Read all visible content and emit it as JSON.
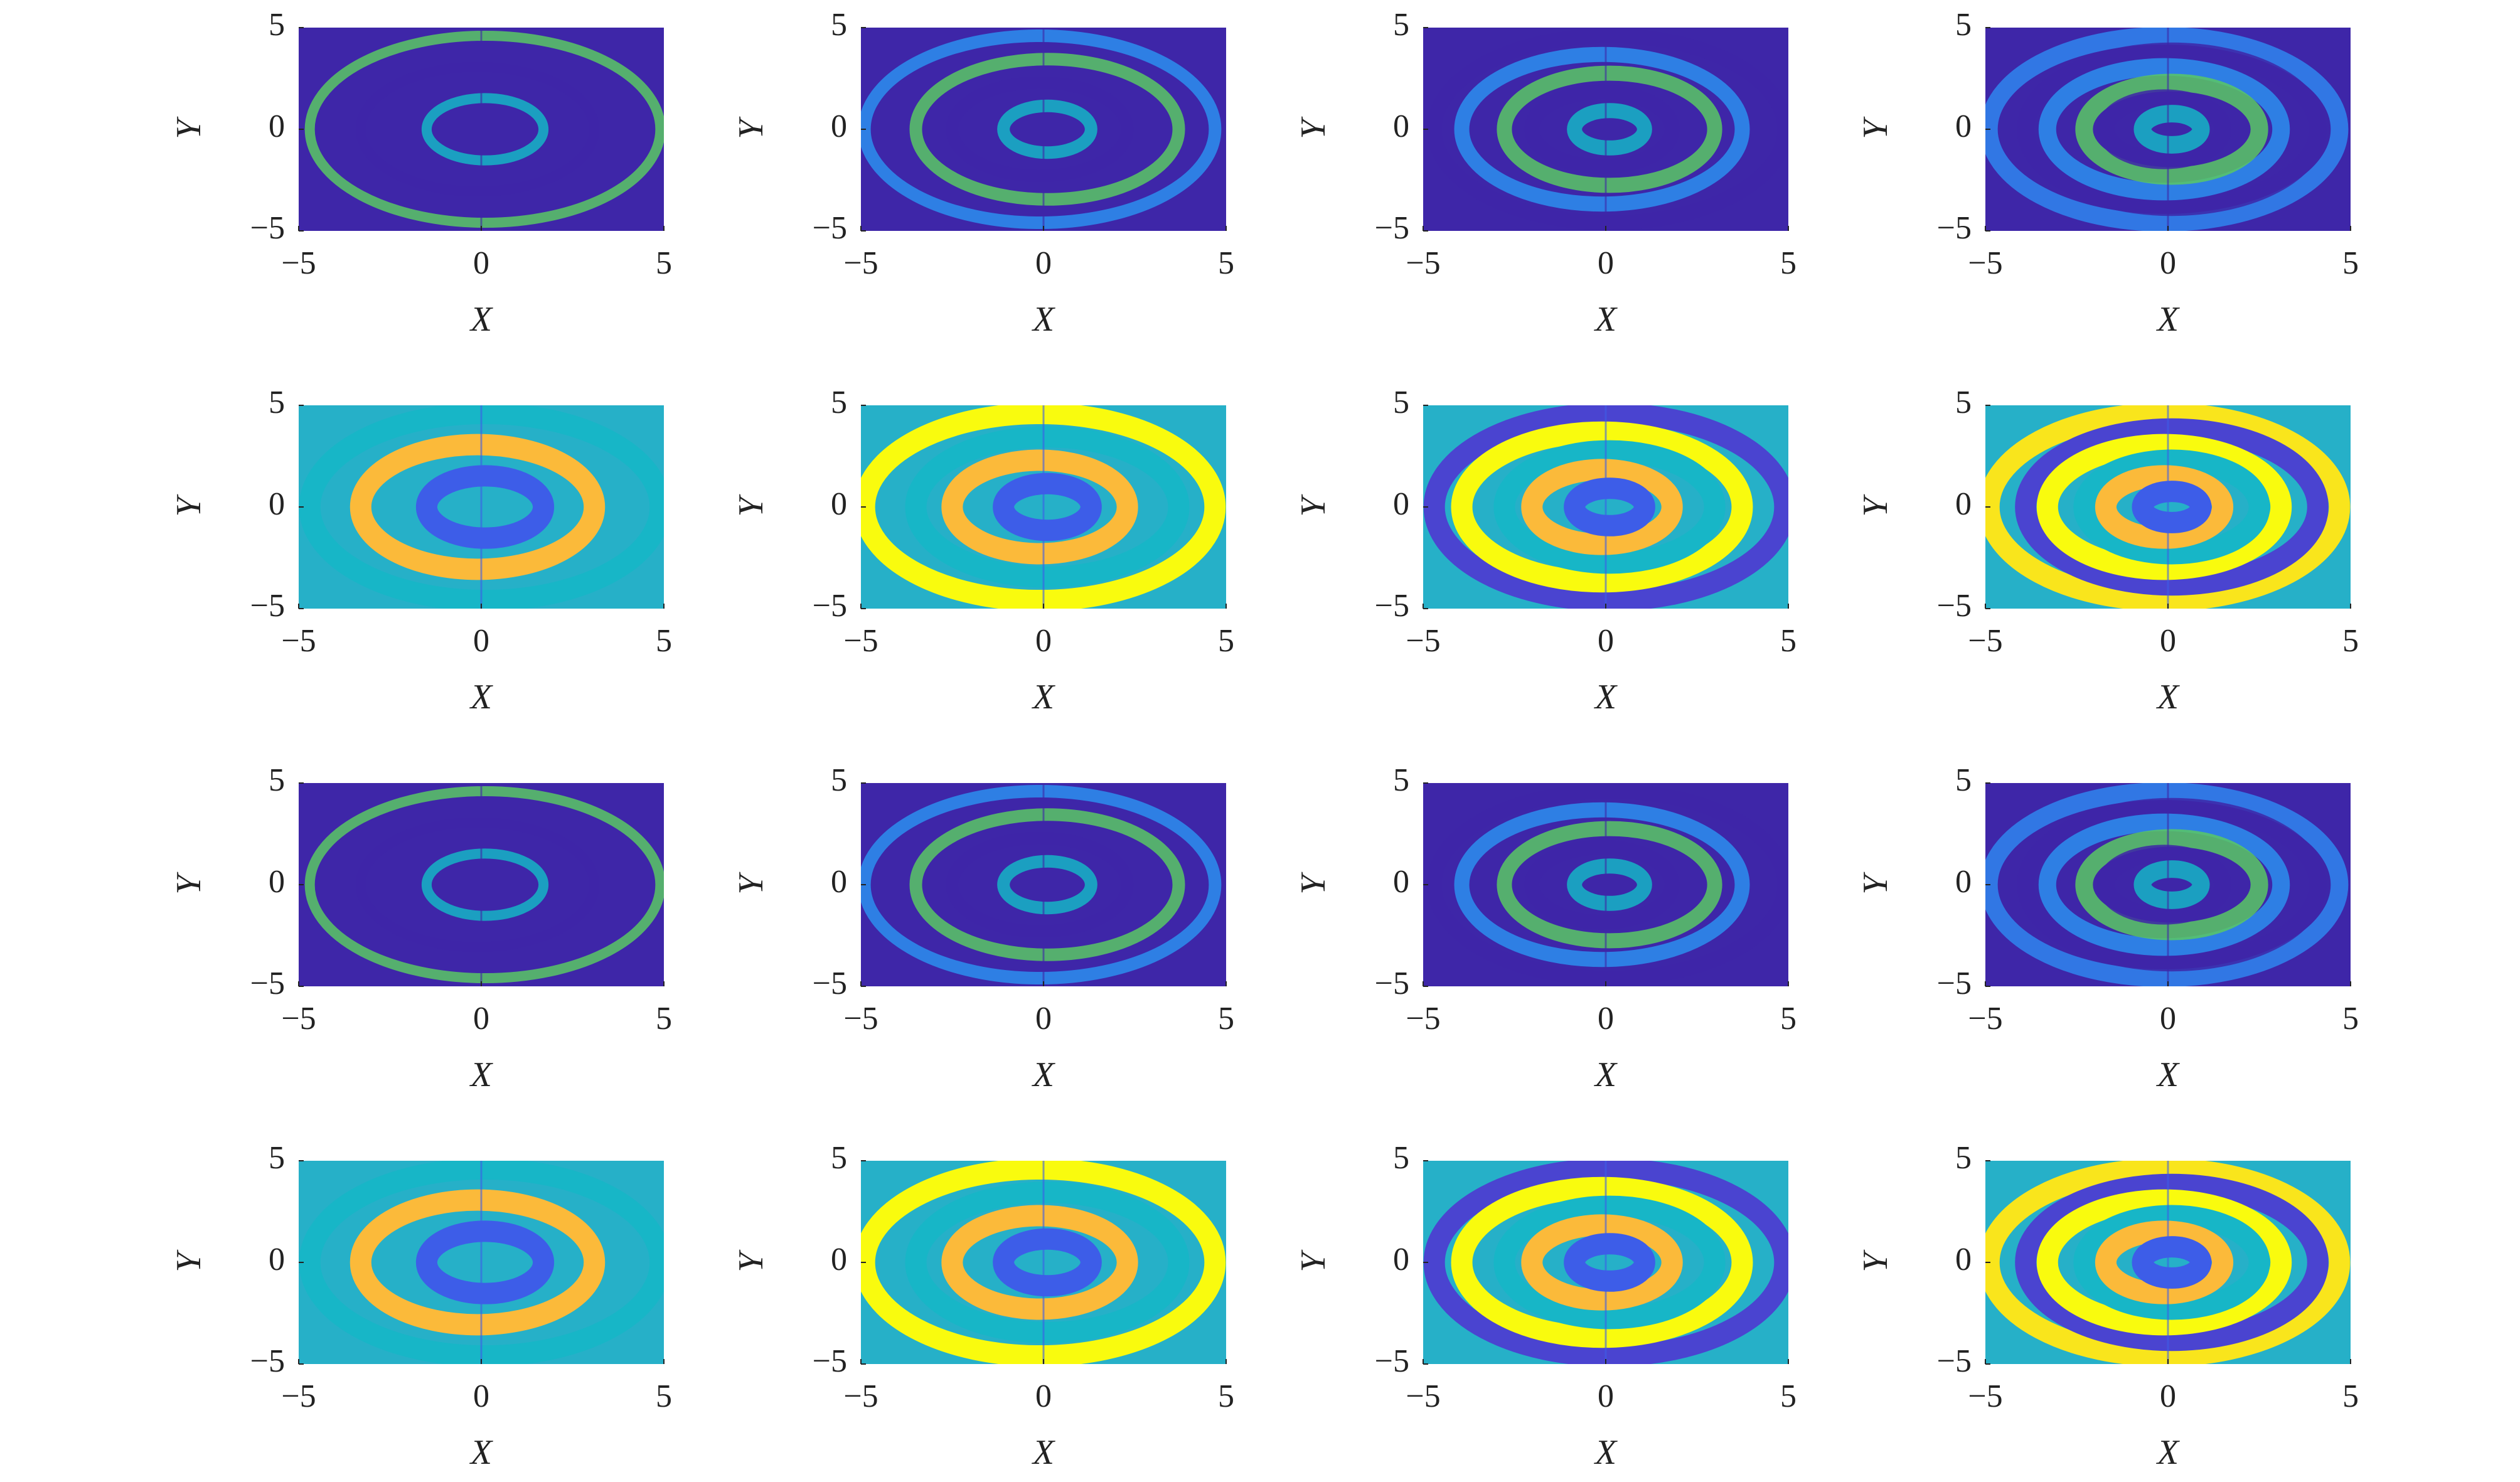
{
  "chart_data": [
    {
      "type": "heatmap",
      "xlabel": "X",
      "ylabel": "Y",
      "xlim": [
        -5,
        5
      ],
      "ylim": [
        -5,
        5
      ],
      "xticks": [
        {
          "value": -5,
          "label": "−5"
        },
        0,
        5
      ],
      "yticks": [
        {
          "value": -5,
          "label": "−5"
        },
        0,
        5
      ]
    },
    {
      "type": "heatmap",
      "xlabel": "X",
      "ylabel": "Y",
      "xlim": [
        -5,
        5
      ],
      "ylim": [
        -5,
        5
      ],
      "xticks": [
        {
          "value": -5,
          "label": "−5"
        },
        0,
        5
      ],
      "yticks": [
        {
          "value": -5,
          "label": "−5"
        },
        0,
        5
      ]
    },
    {
      "type": "heatmap",
      "xlabel": "X",
      "ylabel": "Y",
      "xlim": [
        -5,
        5
      ],
      "ylim": [
        -5,
        5
      ],
      "xticks": [
        {
          "value": -5,
          "label": "−5"
        },
        0,
        5
      ],
      "yticks": [
        {
          "value": -5,
          "label": "−5"
        },
        0,
        5
      ]
    },
    {
      "type": "heatmap",
      "xlabel": "X",
      "ylabel": "Y",
      "xlim": [
        -5,
        5
      ],
      "ylim": [
        -5,
        5
      ],
      "xticks": [
        {
          "value": -5,
          "label": "−5"
        },
        0,
        5
      ],
      "yticks": [
        {
          "value": -5,
          "label": "−5"
        },
        0,
        5
      ]
    },
    {
      "type": "heatmap",
      "xlabel": "X",
      "ylabel": "Y",
      "xlim": [
        -5,
        5
      ],
      "ylim": [
        -5,
        5
      ],
      "xticks": [
        {
          "value": -5,
          "label": "−5"
        },
        0,
        5
      ],
      "yticks": [
        {
          "value": -5,
          "label": "−5"
        },
        0,
        5
      ]
    },
    {
      "type": "heatmap",
      "xlabel": "X",
      "ylabel": "Y",
      "xlim": [
        -5,
        5
      ],
      "ylim": [
        -5,
        5
      ],
      "xticks": [
        {
          "value": -5,
          "label": "−5"
        },
        0,
        5
      ],
      "yticks": [
        {
          "value": -5,
          "label": "−5"
        },
        0,
        5
      ]
    },
    {
      "type": "heatmap",
      "xlabel": "X",
      "ylabel": "Y",
      "xlim": [
        -5,
        5
      ],
      "ylim": [
        -5,
        5
      ],
      "xticks": [
        {
          "value": -5,
          "label": "−5"
        },
        0,
        5
      ],
      "yticks": [
        {
          "value": -5,
          "label": "−5"
        },
        0,
        5
      ]
    },
    {
      "type": "heatmap",
      "xlabel": "X",
      "ylabel": "Y",
      "xlim": [
        -5,
        5
      ],
      "ylim": [
        -5,
        5
      ],
      "xticks": [
        {
          "value": -5,
          "label": "−5"
        },
        0,
        5
      ],
      "yticks": [
        {
          "value": -5,
          "label": "−5"
        },
        0,
        5
      ]
    },
    {
      "type": "heatmap",
      "xlabel": "X",
      "ylabel": "Y",
      "xlim": [
        -5,
        5
      ],
      "ylim": [
        -5,
        5
      ],
      "xticks": [
        {
          "value": -5,
          "label": "−5"
        },
        0,
        5
      ],
      "yticks": [
        {
          "value": -5,
          "label": "−5"
        },
        0,
        5
      ]
    },
    {
      "type": "heatmap",
      "xlabel": "X",
      "ylabel": "Y",
      "xlim": [
        -5,
        5
      ],
      "ylim": [
        -5,
        5
      ],
      "xticks": [
        {
          "value": -5,
          "label": "−5"
        },
        0,
        5
      ],
      "yticks": [
        {
          "value": -5,
          "label": "−5"
        },
        0,
        5
      ]
    },
    {
      "type": "heatmap",
      "xlabel": "X",
      "ylabel": "Y",
      "xlim": [
        -5,
        5
      ],
      "ylim": [
        -5,
        5
      ],
      "xticks": [
        {
          "value": -5,
          "label": "−5"
        },
        0,
        5
      ],
      "yticks": [
        {
          "value": -5,
          "label": "−5"
        },
        0,
        5
      ]
    },
    {
      "type": "heatmap",
      "xlabel": "X",
      "ylabel": "Y",
      "xlim": [
        -5,
        5
      ],
      "ylim": [
        -5,
        5
      ],
      "xticks": [
        {
          "value": -5,
          "label": "−5"
        },
        0,
        5
      ],
      "yticks": [
        {
          "value": -5,
          "label": "−5"
        },
        0,
        5
      ]
    },
    {
      "type": "heatmap",
      "xlabel": "X",
      "ylabel": "Y",
      "xlim": [
        -5,
        5
      ],
      "ylim": [
        -5,
        5
      ],
      "xticks": [
        {
          "value": -5,
          "label": "−5"
        },
        0,
        5
      ],
      "yticks": [
        {
          "value": -5,
          "label": "−5"
        },
        0,
        5
      ]
    },
    {
      "type": "heatmap",
      "xlabel": "X",
      "ylabel": "Y",
      "xlim": [
        -5,
        5
      ],
      "ylim": [
        -5,
        5
      ],
      "xticks": [
        {
          "value": -5,
          "label": "−5"
        },
        0,
        5
      ],
      "yticks": [
        {
          "value": -5,
          "label": "−5"
        },
        0,
        5
      ]
    },
    {
      "type": "heatmap",
      "xlabel": "X",
      "ylabel": "Y",
      "xlim": [
        -5,
        5
      ],
      "ylim": [
        -5,
        5
      ],
      "xticks": [
        {
          "value": -5,
          "label": "−5"
        },
        0,
        5
      ],
      "yticks": [
        {
          "value": -5,
          "label": "−5"
        },
        0,
        5
      ]
    },
    {
      "type": "heatmap",
      "xlabel": "X",
      "ylabel": "Y",
      "xlim": [
        -5,
        5
      ],
      "ylim": [
        -5,
        5
      ],
      "xticks": [
        {
          "value": -5,
          "label": "−5"
        },
        0,
        5
      ],
      "yticks": [
        {
          "value": -5,
          "label": "−5"
        },
        0,
        5
      ]
    }
  ]
}
